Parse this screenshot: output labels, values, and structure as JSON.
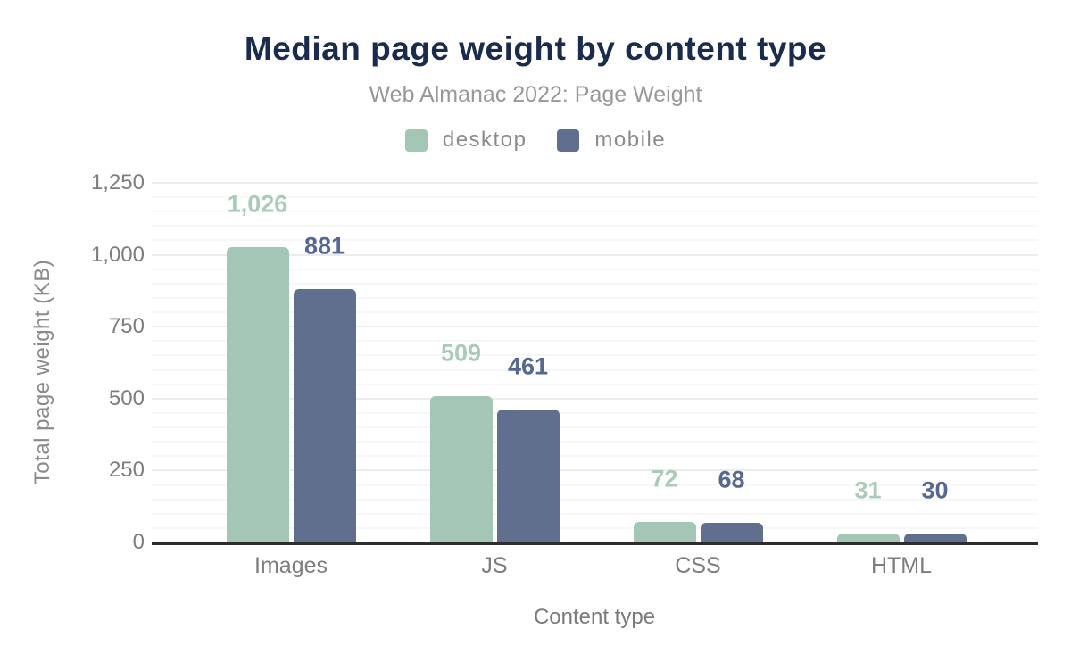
{
  "header": {
    "title": "Median page weight by content type",
    "subtitle": "Web Almanac 2022: Page Weight"
  },
  "chart_data": {
    "type": "bar",
    "grouped": true,
    "title": "Median page weight by content type",
    "subtitle": "Web Almanac 2022: Page Weight",
    "categories": [
      "Images",
      "JS",
      "CSS",
      "HTML"
    ],
    "series": [
      {
        "name": "desktop",
        "values": [
          1026,
          509,
          72,
          31
        ],
        "value_labels": [
          "1,026",
          "509",
          "72",
          "31"
        ],
        "color": "#a4c7b5",
        "value_label_color": "#a9cbb8"
      },
      {
        "name": "mobile",
        "values": [
          881,
          461,
          68,
          30
        ],
        "value_labels": [
          "881",
          "461",
          "68",
          "30"
        ],
        "color": "#5f6f8d",
        "value_label_color": "#55688f"
      }
    ],
    "xlabel": "Content type",
    "ylabel": "Total page weight (KB)",
    "ylim": [
      0,
      1250
    ],
    "ytick_step": 250,
    "yminor_step": 50,
    "ytick_labels": [
      "0",
      "250",
      "500",
      "750",
      "1,000",
      "1,250"
    ],
    "legend_position": "top",
    "grid": true
  },
  "colors": {
    "title": "#1a2c4d",
    "subtitle": "#989898",
    "axis_text": "#7d7d7d",
    "axis_line": "#2d2d2d",
    "major_grid": "#ececec",
    "minor_grid": "#f7f7f7"
  }
}
